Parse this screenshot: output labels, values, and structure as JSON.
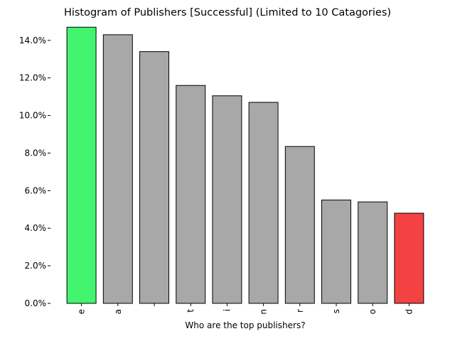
{
  "chart_data": {
    "type": "bar",
    "title": "Histogram of Publishers [Successful] (Limited to 10 Catagories)",
    "xlabel": "Who are the top publishers?",
    "ylabel": "",
    "categories": [
      "e",
      "a",
      " ",
      "t",
      "i",
      "n",
      "r",
      "s",
      "o",
      "d"
    ],
    "values": [
      14.7,
      14.3,
      13.4,
      11.6,
      11.05,
      10.7,
      8.35,
      5.5,
      5.4,
      4.8
    ],
    "ylim": [
      0,
      14.9
    ],
    "yticks": [
      0,
      2,
      4,
      6,
      8,
      10,
      12,
      14
    ],
    "ytick_labels": [
      "0.0%",
      "2.0%",
      "4.0%",
      "6.0%",
      "8.0%",
      "10.0%",
      "12.0%",
      "14.0%"
    ],
    "grid": false,
    "colors": {
      "highest": "#42f46e",
      "lowest": "#f44242",
      "default": "#a8a8a8",
      "edge": "#000000"
    }
  }
}
